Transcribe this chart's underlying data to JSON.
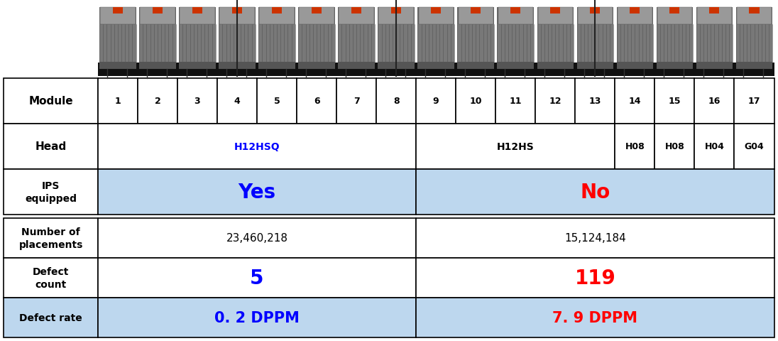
{
  "modules": [
    "1",
    "2",
    "3",
    "4",
    "5",
    "6",
    "7",
    "8",
    "9",
    "10",
    "11",
    "12",
    "13",
    "14",
    "15",
    "16",
    "17"
  ],
  "head_h12hsq": "H12HSQ",
  "head_h12hs": "H12HS",
  "head_h08": "H08",
  "head_h04": "H04",
  "head_g04": "G04",
  "ips_yes": "Yes",
  "ips_no": "No",
  "placements_yes": "23,460,218",
  "placements_no": "15,124,184",
  "defect_yes": "5",
  "defect_no": "119",
  "rate_yes": "0. 2 DPPM",
  "rate_no": "7. 9 DPPM",
  "color_blue": "#0000FF",
  "color_red": "#FF0000",
  "color_light_blue": "#BDD7EE",
  "color_white": "#FFFFFF",
  "color_black": "#000000",
  "color_border": "#000000",
  "color_h12hsq": "#0000FF",
  "label_module": "Module",
  "label_head": "Head",
  "label_ips": "IPS\nequipped",
  "label_placements": "Number of\nplacements",
  "label_defect_count": "Defect\ncount",
  "label_defect_rate": "Defect rate",
  "img_bg_dark": "#111111",
  "img_module_body": "#888888",
  "img_module_top": "#aaaaaa",
  "img_module_dark": "#444444"
}
